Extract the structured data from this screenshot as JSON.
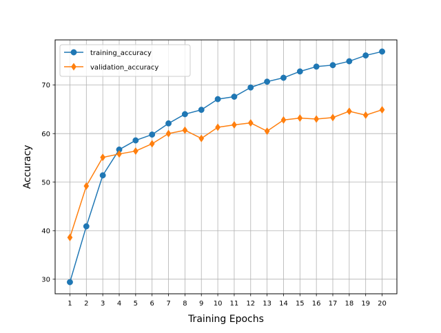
{
  "chart_data": {
    "type": "line",
    "title": "",
    "xlabel": "Training Epochs",
    "ylabel": "Accuracy",
    "x": [
      1,
      2,
      3,
      4,
      5,
      6,
      7,
      8,
      9,
      10,
      11,
      12,
      13,
      14,
      15,
      16,
      17,
      18,
      19,
      20
    ],
    "xlim": [
      0.1,
      20.9
    ],
    "ylim": [
      27,
      79.3
    ],
    "yticks": [
      30,
      40,
      50,
      60,
      70
    ],
    "grid": true,
    "legend": "top-left",
    "series": [
      {
        "name": "training_accuracy",
        "color": "#1f77b4",
        "marker": "circle",
        "values": [
          29.4,
          40.9,
          51.4,
          56.7,
          58.6,
          59.8,
          62.1,
          64.0,
          64.9,
          67.1,
          67.6,
          69.5,
          70.7,
          71.5,
          72.8,
          73.8,
          74.1,
          74.9,
          76.1,
          76.9
        ]
      },
      {
        "name": "validation_accuracy",
        "color": "#ff7f0e",
        "marker": "diamond",
        "values": [
          38.6,
          49.2,
          55.1,
          55.8,
          56.4,
          57.9,
          60.0,
          60.7,
          59.0,
          61.3,
          61.8,
          62.2,
          60.5,
          62.8,
          63.2,
          63.0,
          63.3,
          64.6,
          63.8,
          64.9
        ]
      }
    ]
  }
}
